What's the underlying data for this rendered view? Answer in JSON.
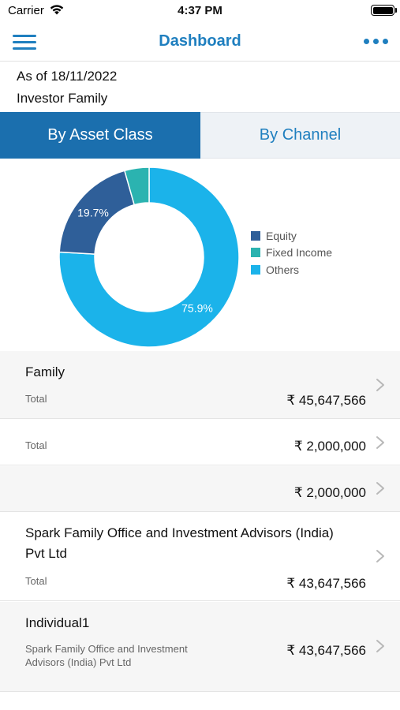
{
  "status_bar": {
    "carrier": "Carrier",
    "time": "4:37 PM"
  },
  "nav": {
    "title": "Dashboard",
    "menu_icon": "hamburger-menu-icon",
    "more_icon": "more-horizontal-icon"
  },
  "header": {
    "as_of": "As of 18/11/2022",
    "family": "Investor Family"
  },
  "tabs": [
    {
      "label": "By Asset Class",
      "active": true
    },
    {
      "label": "By Channel",
      "active": false
    }
  ],
  "chart_data": {
    "type": "pie",
    "donut": true,
    "categories": [
      "Equity",
      "Fixed Income",
      "Others"
    ],
    "values": [
      19.7,
      4.4,
      75.9
    ],
    "labels": [
      "19.7%",
      "",
      "75.9%"
    ],
    "colors": [
      "#2f5f99",
      "#2bb3b0",
      "#1bb3ea"
    ],
    "legend_position": "right"
  },
  "rows": [
    {
      "title": "Family",
      "sub": "Total",
      "amount": "₹ 45,647,566"
    },
    {
      "title": "",
      "sub": "Total",
      "amount": "₹ 2,000,000"
    },
    {
      "title": "",
      "sub": "",
      "amount": "₹ 2,000,000"
    },
    {
      "title": "Spark Family Office and Investment Advisors (India) Pvt Ltd",
      "sub": "Total",
      "amount": "₹ 43,647,566"
    },
    {
      "title": "Individual1",
      "sub": "Spark Family Office and Investment Advisors (India) Pvt Ltd",
      "amount": "₹ 43,647,566"
    }
  ]
}
